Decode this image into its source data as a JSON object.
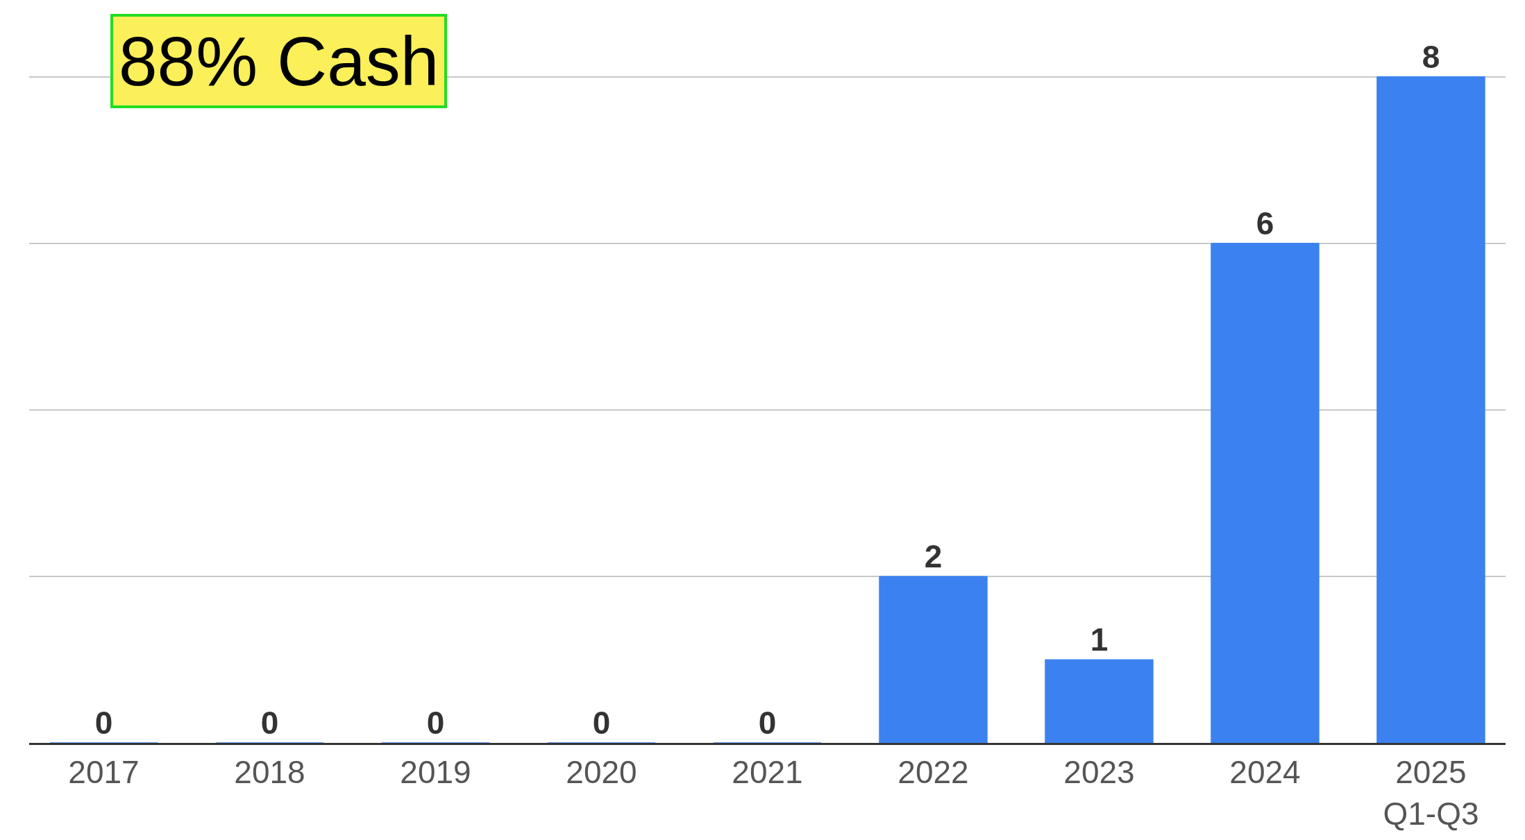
{
  "chart_data": {
    "type": "bar",
    "categories": [
      "2017",
      "2018",
      "2019",
      "2020",
      "2021",
      "2022",
      "2023",
      "2024",
      "2025\nQ1-Q3"
    ],
    "values": [
      0,
      0,
      0,
      0,
      0,
      2,
      1,
      6,
      8
    ],
    "color": "#3b82f0",
    "yticks": [
      {
        "value": 0,
        "label": null
      },
      {
        "value": 2,
        "label": null
      },
      {
        "value": 4,
        "label": null
      },
      {
        "value": 6,
        "label": null
      },
      {
        "value": 8,
        "label": null
      }
    ],
    "tick_labels": "x",
    "grid": "y",
    "data_labels": true,
    "annotations": [
      "88% Cash"
    ]
  }
}
